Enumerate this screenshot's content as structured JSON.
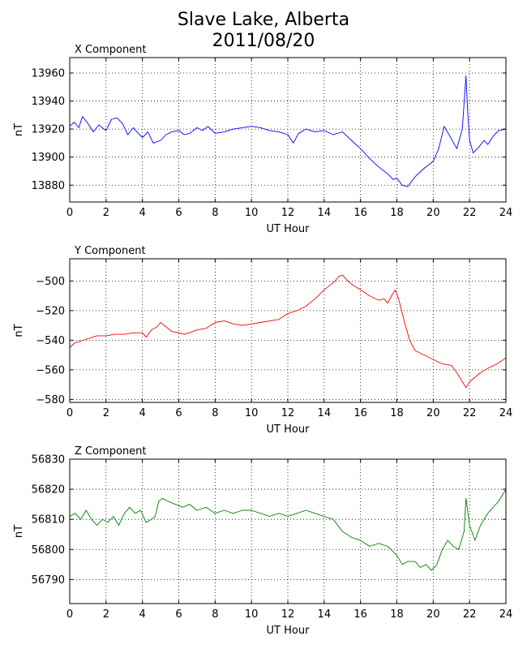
{
  "figure": {
    "title_line1": "Slave Lake, Alberta",
    "title_line2": "2011/08/20"
  },
  "chart_data": [
    {
      "type": "line",
      "title": "X Component",
      "xlabel": "UT Hour",
      "ylabel": "nT",
      "xlim": [
        0,
        24
      ],
      "ylim": [
        13868,
        13971
      ],
      "xticks": [
        0,
        2,
        4,
        6,
        8,
        10,
        12,
        14,
        16,
        18,
        20,
        22,
        24
      ],
      "yticks": [
        13880,
        13900,
        13920,
        13940,
        13960
      ],
      "grid": true,
      "color": "#0000ff",
      "series": [
        {
          "x": [
            0,
            0.25,
            0.5,
            0.7,
            1.0,
            1.3,
            1.6,
            2.0,
            2.3,
            2.6,
            2.9,
            3.2,
            3.5,
            3.7,
            4.0,
            4.3,
            4.6,
            5.0,
            5.3,
            5.6,
            6.0,
            6.3,
            6.6,
            7.0,
            7.3,
            7.6,
            8.0,
            8.5,
            9.0,
            9.5,
            10.0,
            10.5,
            11.0,
            11.5,
            12.0,
            12.3,
            12.6,
            13.0,
            13.5,
            14.0,
            14.5,
            15.0,
            15.5,
            16.0,
            16.5,
            17.0,
            17.5,
            17.8,
            18.0,
            18.3,
            18.6,
            19.0,
            19.5,
            20.0,
            20.3,
            20.6,
            21.0,
            21.3,
            21.6,
            21.8,
            21.9,
            22.0,
            22.2,
            22.5,
            22.8,
            23.0,
            23.3,
            23.6,
            24.0
          ],
          "y": [
            13922,
            13925,
            13921,
            13929,
            13924,
            13918,
            13923,
            13919,
            13927,
            13928,
            13924,
            13916,
            13921,
            13918,
            13914,
            13918,
            13910,
            13912,
            13916,
            13918,
            13919,
            13916,
            13917,
            13921,
            13919,
            13922,
            13917,
            13918,
            13920,
            13921,
            13922,
            13921,
            13919,
            13918,
            13916,
            13910,
            13917,
            13920,
            13918,
            13919,
            13916,
            13918,
            13912,
            13906,
            13899,
            13893,
            13888,
            13884,
            13885,
            13880,
            13879,
            13886,
            13892,
            13897,
            13906,
            13922,
            13913,
            13906,
            13920,
            13958,
            13932,
            13912,
            13903,
            13907,
            13912,
            13909,
            13915,
            13919,
            13920
          ]
        }
      ]
    },
    {
      "type": "line",
      "title": "Y Component",
      "xlabel": "UT Hour",
      "ylabel": "nT",
      "xlim": [
        0,
        24
      ],
      "ylim": [
        -582,
        -485
      ],
      "xticks": [
        0,
        2,
        4,
        6,
        8,
        10,
        12,
        14,
        16,
        18,
        20,
        22,
        24
      ],
      "yticks": [
        -500,
        -520,
        -540,
        -560,
        -580
      ],
      "grid": true,
      "color": "#ff0000",
      "series": [
        {
          "x": [
            0,
            0.25,
            0.5,
            1.0,
            1.5,
            2.0,
            2.5,
            3.0,
            3.5,
            4.0,
            4.2,
            4.5,
            4.8,
            5.0,
            5.3,
            5.6,
            6.0,
            6.3,
            6.6,
            7.0,
            7.5,
            8.0,
            8.5,
            9.0,
            9.5,
            10.0,
            10.5,
            11.0,
            11.5,
            12.0,
            12.5,
            13.0,
            13.5,
            14.0,
            14.3,
            14.6,
            14.8,
            15.0,
            15.3,
            15.6,
            16.0,
            16.5,
            17.0,
            17.3,
            17.5,
            17.7,
            17.9,
            18.1,
            18.4,
            18.7,
            19.0,
            19.5,
            20.0,
            20.5,
            21.0,
            21.3,
            21.6,
            21.8,
            22.0,
            22.3,
            22.6,
            23.0,
            23.5,
            24.0
          ],
          "y": [
            -545,
            -542,
            -541,
            -539,
            -537,
            -537,
            -536,
            -536,
            -535,
            -535,
            -538,
            -533,
            -531,
            -528,
            -531,
            -534,
            -535,
            -536,
            -535,
            -533,
            -532,
            -528,
            -527,
            -529,
            -530,
            -529,
            -528,
            -527,
            -526,
            -522,
            -520,
            -517,
            -512,
            -506,
            -503,
            -500,
            -497,
            -496,
            -500,
            -503,
            -506,
            -510,
            -513,
            -512,
            -515,
            -510,
            -506,
            -512,
            -527,
            -540,
            -547,
            -550,
            -553,
            -556,
            -557,
            -562,
            -568,
            -572,
            -568,
            -565,
            -562,
            -559,
            -556,
            -552
          ]
        }
      ]
    },
    {
      "type": "line",
      "title": "Z Component",
      "xlabel": "UT Hour",
      "ylabel": "nT",
      "xlim": [
        0,
        24
      ],
      "ylim": [
        56782,
        56830
      ],
      "xticks": [
        0,
        2,
        4,
        6,
        8,
        10,
        12,
        14,
        16,
        18,
        20,
        22,
        24
      ],
      "yticks": [
        56790,
        56800,
        56810,
        56820,
        56830
      ],
      "grid": true,
      "color": "#008000",
      "series": [
        {
          "x": [
            0,
            0.3,
            0.6,
            0.9,
            1.2,
            1.5,
            1.8,
            2.1,
            2.4,
            2.7,
            3.0,
            3.3,
            3.6,
            3.9,
            4.2,
            4.5,
            4.7,
            4.9,
            5.1,
            5.4,
            5.8,
            6.2,
            6.6,
            7.0,
            7.5,
            8.0,
            8.5,
            9.0,
            9.5,
            10.0,
            10.5,
            11.0,
            11.5,
            12.0,
            12.5,
            13.0,
            13.5,
            14.0,
            14.5,
            15.0,
            15.5,
            16.0,
            16.5,
            17.0,
            17.5,
            18.0,
            18.3,
            18.6,
            19.0,
            19.3,
            19.6,
            19.9,
            20.2,
            20.5,
            20.8,
            21.1,
            21.4,
            21.7,
            21.8,
            22.0,
            22.3,
            22.6,
            23.0,
            23.3,
            23.6,
            24.0
          ],
          "y": [
            56811,
            56812,
            56810,
            56813,
            56810,
            56808,
            56810,
            56809,
            56811,
            56808,
            56812,
            56814,
            56812,
            56813,
            56809,
            56810,
            56811,
            56816,
            56817,
            56816,
            56815,
            56814,
            56815,
            56813,
            56814,
            56812,
            56813,
            56812,
            56813,
            56813,
            56812,
            56811,
            56812,
            56811,
            56812,
            56813,
            56812,
            56811,
            56810,
            56806,
            56804,
            56803,
            56801,
            56802,
            56801,
            56798,
            56795,
            56796,
            56796,
            56794,
            56795,
            56793,
            56795,
            56800,
            56803,
            56801,
            56800,
            56806,
            56817,
            56808,
            56803,
            56808,
            56812,
            56814,
            56816,
            56820
          ]
        }
      ]
    }
  ]
}
